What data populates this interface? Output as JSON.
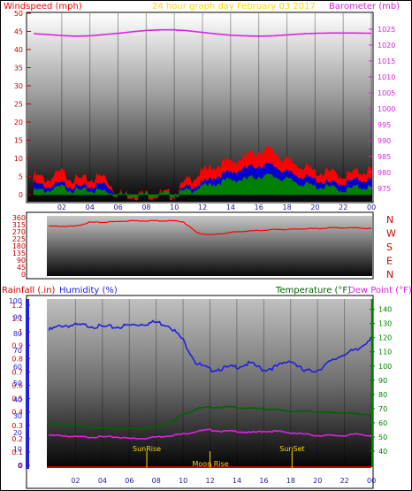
{
  "header": {
    "windspeed_label": "Windspeed (mph)",
    "title": "24 hour graph day   February 03 2017",
    "barometer_label": "Barometer (mb)"
  },
  "labels": {
    "rainfall_label": "Rainfall (.in)",
    "humidity_label": "Humidity (%)",
    "temperature_label": "Temperature (°F)",
    "dewpoint_label": "Dew Point (°F)"
  },
  "annotations": {
    "sunrise": "SunRise",
    "moonrise": "Moon Rise",
    "sunset": "SunSet"
  },
  "colors": {
    "windspeed": "#ff0000",
    "windgust": "#ff0000",
    "windavg": "#0000cc",
    "windlow": "#008000",
    "barometer": "#e020e0",
    "title": "#ffd700",
    "direction": "#ff0000",
    "humidity": "#2020e0",
    "temperature": "#006400",
    "dewpoint": "#e020e0",
    "rainfall": "#cc0000",
    "annotation": "#ffd700",
    "axis_right_top": "#e020e0",
    "axis_right_bottom": "#008000"
  },
  "chart_data": [
    {
      "type": "line",
      "name": "wind-barometer",
      "x_ticks": [
        "02",
        "04",
        "06",
        "08",
        "10",
        "12",
        "14",
        "16",
        "18",
        "20",
        "22",
        "00"
      ],
      "y_left_ticks": [
        "0",
        "5",
        "10",
        "15",
        "20",
        "25",
        "30",
        "35",
        "40",
        "45",
        "50"
      ],
      "y_right_ticks": [
        "975",
        "980",
        "985",
        "990",
        "995",
        "1000",
        "1005",
        "1010",
        "1015",
        "1020",
        "1025"
      ],
      "ylim_left": [
        0,
        50
      ],
      "ylim_right": [
        973,
        1030
      ],
      "x_hours": [
        0,
        1,
        2,
        3,
        4,
        5,
        6,
        7,
        8,
        9,
        10,
        11,
        12,
        13,
        14,
        15,
        16,
        17,
        18,
        19,
        20,
        21,
        22,
        23,
        24
      ],
      "series": [
        {
          "key": "gust",
          "axis": "left",
          "values": [
            5,
            4,
            6,
            4,
            4,
            5,
            0,
            0,
            0,
            0,
            0,
            4,
            6,
            8,
            9,
            10,
            12,
            12,
            9,
            8,
            6,
            6,
            5,
            6,
            7
          ]
        },
        {
          "key": "avg",
          "axis": "left",
          "values": [
            3,
            2,
            3,
            2,
            2,
            3,
            0,
            0,
            0,
            0,
            0,
            2,
            3,
            5,
            6,
            7,
            8,
            8,
            6,
            5,
            4,
            3,
            3,
            4,
            4
          ]
        },
        {
          "key": "low",
          "axis": "left",
          "values": [
            1,
            1,
            2,
            1,
            1,
            1,
            0,
            0,
            0,
            0,
            0,
            1,
            2,
            3,
            4,
            4,
            5,
            5,
            4,
            3,
            2,
            2,
            1,
            2,
            2
          ]
        },
        {
          "key": "barometer",
          "axis": "right",
          "values": [
            1023.6,
            1023.3,
            1023.0,
            1022.8,
            1022.9,
            1023.3,
            1023.7,
            1024.2,
            1024.6,
            1024.8,
            1024.8,
            1024.5,
            1024.0,
            1023.5,
            1023.1,
            1022.9,
            1022.8,
            1022.9,
            1023.2,
            1023.5,
            1023.7,
            1023.8,
            1023.8,
            1023.8,
            1023.7
          ]
        }
      ]
    },
    {
      "type": "line",
      "name": "wind-direction",
      "y_left_ticks": [
        "360",
        "315",
        "270",
        "225",
        "180",
        "135",
        "90",
        "45",
        "0"
      ],
      "y_right_ticks": [
        "N",
        "W",
        "S",
        "E",
        "N"
      ],
      "ylim": [
        0,
        360
      ],
      "x_hours": [
        0,
        1,
        2,
        3,
        4,
        5,
        6,
        7,
        8,
        9,
        10,
        11,
        12,
        13,
        14,
        15,
        16,
        17,
        18,
        19,
        20,
        21,
        22,
        23,
        24
      ],
      "values": [
        305,
        305,
        305,
        330,
        330,
        335,
        340,
        340,
        340,
        340,
        335,
        265,
        250,
        260,
        270,
        275,
        280,
        285,
        285,
        290,
        290,
        295,
        295,
        295,
        290
      ]
    },
    {
      "type": "line",
      "name": "humidity-temperature",
      "x_ticks": [
        "02",
        "04",
        "06",
        "08",
        "10",
        "12",
        "14",
        "16",
        "18",
        "20",
        "22",
        "00"
      ],
      "y_left_outer_ticks": [
        "0",
        "0.1",
        "0.2",
        "0.3",
        "0.4",
        "0.5",
        "0.6",
        "0.7",
        "0.8",
        "0.9",
        "1",
        "1.1",
        "1.2"
      ],
      "y_left_inner_ticks": [
        "0",
        "10",
        "20",
        "30",
        "40",
        "50",
        "60",
        "70",
        "80",
        "90",
        "100"
      ],
      "y_right_ticks": [
        "40",
        "50",
        "60",
        "70",
        "80",
        "90",
        "100",
        "110",
        "120",
        "130",
        "140"
      ],
      "ylim_humidity": [
        0,
        100
      ],
      "ylim_temperature": [
        30,
        146
      ],
      "x_hours": [
        0,
        1,
        2,
        3,
        4,
        5,
        6,
        7,
        8,
        9,
        10,
        11,
        12,
        13,
        14,
        15,
        16,
        17,
        18,
        19,
        20,
        21,
        22,
        23,
        24
      ],
      "series": [
        {
          "key": "humidity",
          "axis": "humidity",
          "values": [
            82,
            85,
            85,
            85,
            84,
            84,
            85,
            86,
            87,
            85,
            76,
            62,
            58,
            59,
            60,
            62,
            58,
            60,
            64,
            57,
            58,
            63,
            68,
            70,
            78
          ]
        },
        {
          "key": "temperature",
          "axis": "temperature",
          "values": [
            59,
            58,
            58,
            57,
            56,
            56,
            56,
            56,
            57,
            60,
            66,
            70,
            71,
            71,
            71,
            70,
            70,
            69,
            68,
            68,
            68,
            67,
            67,
            66,
            66
          ]
        },
        {
          "key": "dewpoint",
          "axis": "temperature",
          "values": [
            51,
            51,
            50,
            50,
            50,
            50,
            49,
            49,
            50,
            51,
            52,
            54,
            55,
            54,
            54,
            53,
            54,
            54,
            53,
            52,
            51,
            51,
            51,
            52,
            51
          ]
        }
      ]
    }
  ]
}
